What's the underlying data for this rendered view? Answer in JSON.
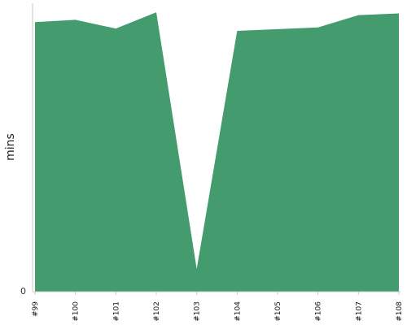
{
  "chart_data": {
    "type": "area",
    "title": "",
    "xlabel": "",
    "ylabel": "mins",
    "x": [
      "#99",
      "#100",
      "#101",
      "#102",
      "#103",
      "#104",
      "#105",
      "#106",
      "#107",
      "#108"
    ],
    "series": [
      {
        "values": [
          92.4,
          93.2,
          90.2,
          95.8,
          7.8,
          89.4,
          90.0,
          90.6,
          94.8,
          95.4
        ]
      }
    ],
    "ylim": [
      0,
      100
    ],
    "y_ticks": [
      0
    ],
    "y_tick_labels": [
      "0"
    ],
    "grid": false,
    "legend": "none",
    "colors": {
      "fill": "#439B6E",
      "axis": "#c8c8c8"
    }
  }
}
